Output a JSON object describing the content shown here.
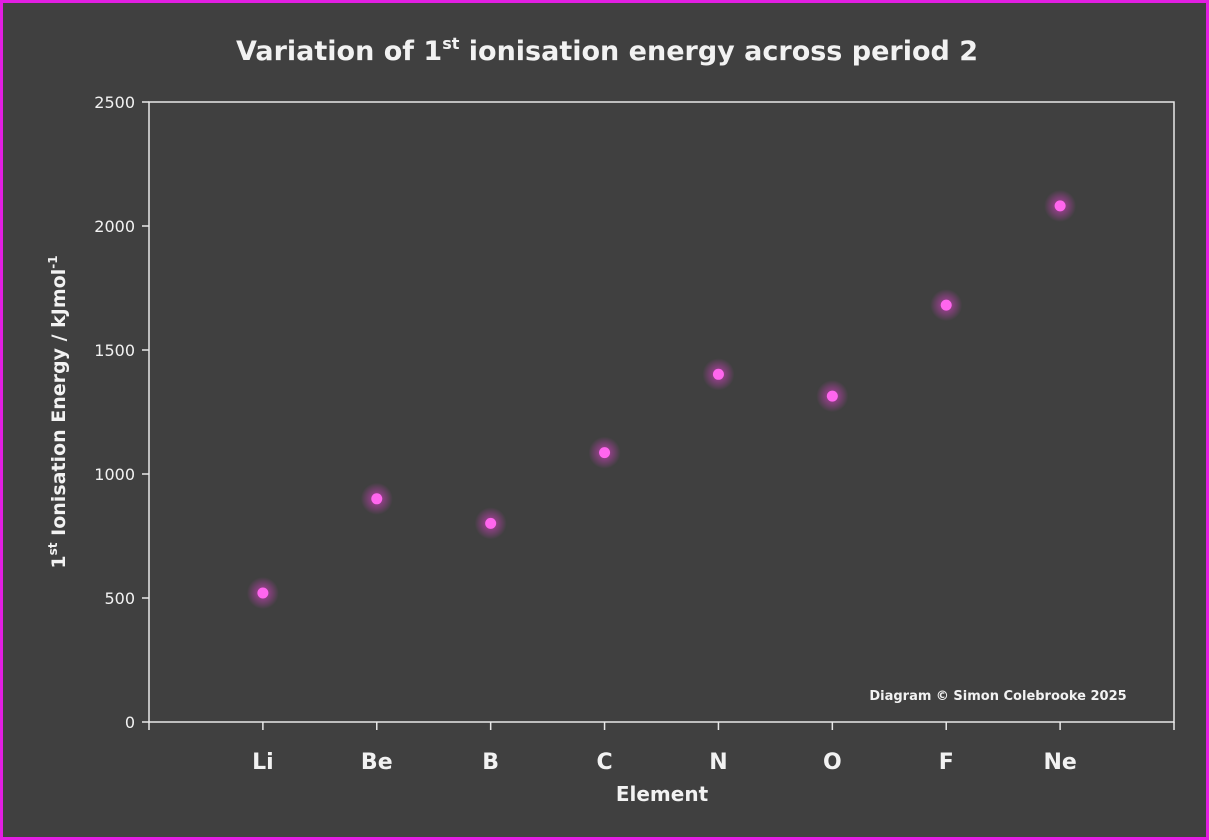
{
  "chart_data": {
    "type": "scatter",
    "title": "Variation of 1st ionisation energy across period 2",
    "title_parts": {
      "pre": "Variation of 1",
      "sup": "st",
      "post": " ionisation energy across period 2"
    },
    "xlabel": "Element",
    "ylabel": "1st Ionisation Energy / kJmol-1",
    "ylabel_parts": {
      "a": "1",
      "a_sup": "st",
      "b": " Ionisation Energy / kJmol",
      "b_sup": "-1"
    },
    "categories": [
      "Li",
      "Be",
      "B",
      "C",
      "N",
      "O",
      "F",
      "Ne"
    ],
    "values": [
      520,
      900,
      801,
      1086,
      1402,
      1314,
      1681,
      2081
    ],
    "ylim": [
      0,
      2500
    ],
    "yticks": [
      "0",
      "500",
      "1000",
      "1500",
      "2000",
      "2500"
    ],
    "grid": false,
    "annotation": "Diagram © Simon Colebrooke 2025",
    "colors": {
      "background": "#404040",
      "border": "#e21ee2",
      "marker": "#ff66ee",
      "text": "#f2f2f2"
    }
  }
}
